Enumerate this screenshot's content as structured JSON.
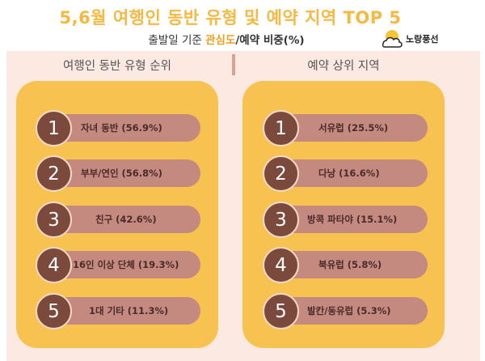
{
  "header": {
    "title": "5,6월 여행인 동반 유형 및 예약 지역 TOP 5",
    "subtitle_prefix": "출발일 기준 ",
    "subtitle_highlight": "관심도",
    "subtitle_rest": "/예약 비중(%)",
    "brand": "노랑풍선",
    "brand_icon": "yellow-balloon-cloud-logo",
    "accent_color": "#f5b942"
  },
  "left": {
    "heading": "여행인 동반 유형 순위",
    "items": [
      {
        "rank": "1",
        "label": "자녀 동반 (56.9%)"
      },
      {
        "rank": "2",
        "label": "부부/연인 (56.8%)"
      },
      {
        "rank": "3",
        "label": "친구 (42.6%)"
      },
      {
        "rank": "4",
        "label": "16인 이상 단체 (19.3%)"
      },
      {
        "rank": "5",
        "label": "1대 기타 (11.3%)"
      }
    ]
  },
  "right": {
    "heading": "예약 상위 지역",
    "items": [
      {
        "rank": "1",
        "label": "서유럽 (25.5%)"
      },
      {
        "rank": "2",
        "label": "다낭 (16.6%)"
      },
      {
        "rank": "3",
        "label": "방콕 파타야 (15.1%)"
      },
      {
        "rank": "4",
        "label": "북유럽 (5.8%)"
      },
      {
        "rank": "5",
        "label": "발칸/동유럽 (5.3%)"
      }
    ]
  },
  "colors": {
    "card": "#f7c24f",
    "pill": "#c48a7f",
    "badge": "#7b4a3d",
    "panel": "#fbe9e2"
  }
}
